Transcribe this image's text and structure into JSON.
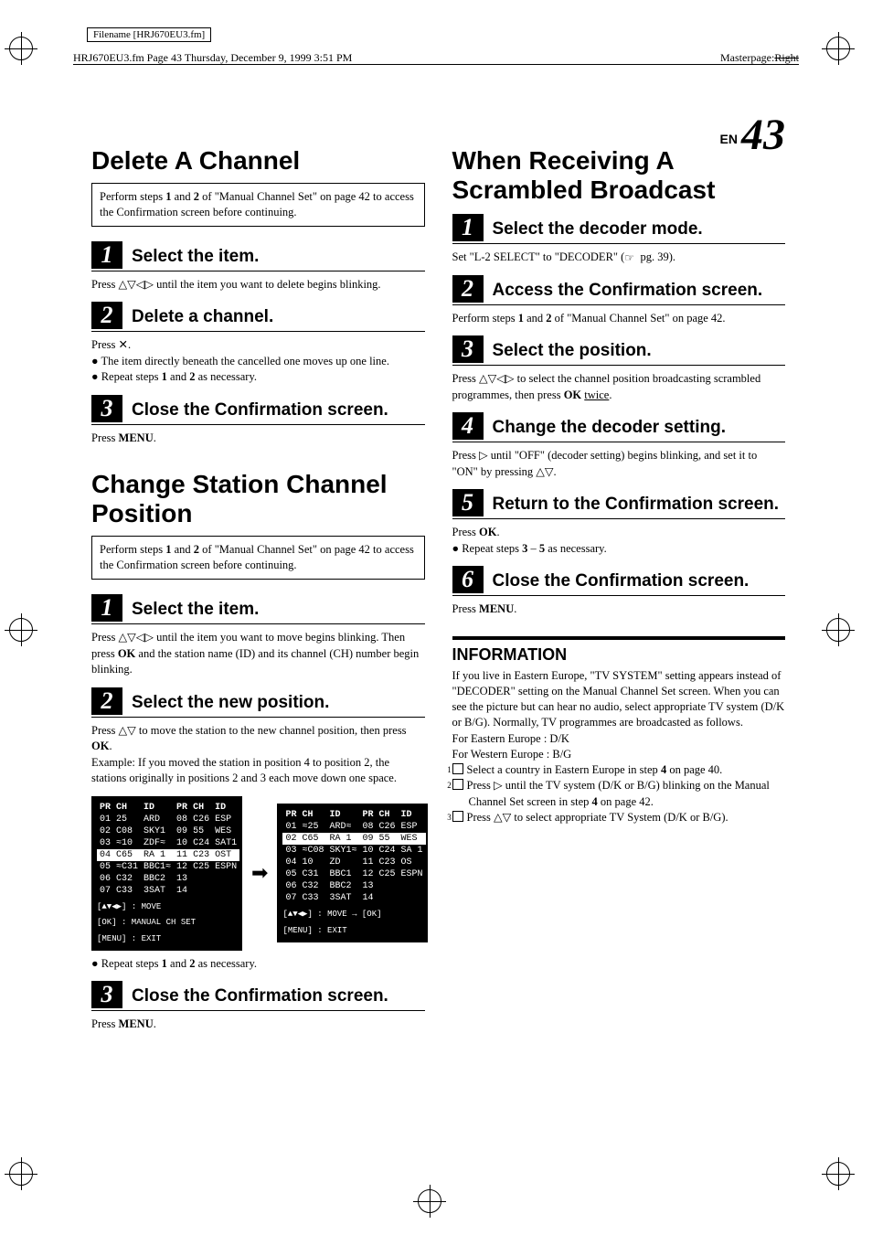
{
  "meta": {
    "filename_label": "Filename [HRJ670EU3.fm]",
    "header_left": "HRJ670EU3.fm  Page 43  Thursday, December 9, 1999  3:51 PM",
    "header_right_prefix": "Masterpage:",
    "header_right_value": "Right",
    "page_en": "EN",
    "page_number": "43"
  },
  "left": {
    "delete": {
      "title": "Delete A Channel",
      "note": "Perform steps 1 and 2 of \"Manual Channel Set\" on page 42 to access the Confirmation screen before continuing.",
      "step1": {
        "num": "1",
        "title": "Select the item.",
        "body": "Press △▽◁▷ until the item you want to delete begins blinking."
      },
      "step2": {
        "num": "2",
        "title": "Delete a channel.",
        "body_intro": "Press ✕.",
        "bul1": "The item directly beneath the cancelled one moves up one line.",
        "bul2": "Repeat steps 1 and 2 as necessary."
      },
      "step3": {
        "num": "3",
        "title": "Close the Confirmation screen.",
        "body": "Press MENU."
      }
    },
    "change": {
      "title": "Change Station Channel Position",
      "note": "Perform steps 1 and 2 of \"Manual Channel Set\" on page 42 to access the Confirmation screen before continuing.",
      "step1": {
        "num": "1",
        "title": "Select the item.",
        "body": "Press △▽◁▷ until the item you want to move begins blinking. Then press OK and the station name (ID) and its channel (CH) number begin blinking."
      },
      "step2": {
        "num": "2",
        "title": "Select the new position.",
        "body1": "Press △▽ to move the station to the new channel position, then press OK.",
        "body2": "Example: If you moved the station in position 4 to position 2, the stations originally in positions 2 and 3 each move down one space.",
        "bul1": "Repeat steps 1 and 2 as necessary."
      },
      "step3": {
        "num": "3",
        "title": "Close the Confirmation screen.",
        "body": "Press MENU."
      }
    },
    "osd_left": {
      "header": [
        "PR",
        "CH",
        "ID",
        "PR",
        "CH",
        "ID"
      ],
      "rows": [
        [
          "01",
          "25",
          "ARD",
          "08",
          "C26",
          "ESP"
        ],
        [
          "02",
          "C08",
          "SKY1",
          "09",
          "55",
          "WES"
        ],
        [
          "03",
          "≈10",
          "ZDF≈",
          "10",
          "C24",
          "SAT1"
        ],
        [
          "04",
          "C65",
          "RA 1",
          "11",
          "C23",
          "OST"
        ],
        [
          "05",
          "≈C31",
          "BBC1≈",
          "12",
          "C25",
          "ESPN"
        ],
        [
          "06",
          "C32",
          "BBC2",
          "13",
          "",
          ""
        ],
        [
          "07",
          "C33",
          "3SAT",
          "14",
          "",
          ""
        ]
      ],
      "highlight_row": 3,
      "footer1": "[▲▼◀▶] : MOVE",
      "footer2": "[OK] : MANUAL CH SET",
      "footer3": "[MENU] : EXIT"
    },
    "osd_right": {
      "header": [
        "PR",
        "CH",
        "ID",
        "PR",
        "CH",
        "ID"
      ],
      "rows": [
        [
          "01",
          "≈25",
          "ARD≈",
          "08",
          "C26",
          "ESP"
        ],
        [
          "02",
          "C65",
          "RA 1",
          "09",
          "55",
          "WES"
        ],
        [
          "03",
          "≈C08",
          "SKY1≈",
          "10",
          "C24",
          "SA 1"
        ],
        [
          "04",
          "10",
          "ZD",
          "11",
          "C23",
          "OS"
        ],
        [
          "05",
          "C31",
          "BBC1",
          "12",
          "C25",
          "ESPN"
        ],
        [
          "06",
          "C32",
          "BBC2",
          "13",
          "",
          ""
        ],
        [
          "07",
          "C33",
          "3SAT",
          "14",
          "",
          ""
        ]
      ],
      "highlight_row": 1,
      "footer1": "[▲▼◀▶] : MOVE → [OK]",
      "footer2": "[MENU] : EXIT"
    }
  },
  "right": {
    "scramble": {
      "title": "When Receiving A Scrambled Broadcast",
      "step1": {
        "num": "1",
        "title": "Select the decoder mode.",
        "body": "Set \"L-2 SELECT\" to \"DECODER\" (☞ pg. 39)."
      },
      "step2": {
        "num": "2",
        "title": "Access the Confirmation screen.",
        "body": "Perform steps 1 and 2 of \"Manual Channel Set\" on page 42."
      },
      "step3": {
        "num": "3",
        "title": "Select the position.",
        "body": "Press △▽◁▷ to select the channel position broadcasting scrambled programmes, then press OK twice."
      },
      "step4": {
        "num": "4",
        "title": "Change the decoder setting.",
        "body": "Press ▷ until \"OFF\" (decoder setting) begins blinking, and set it to \"ON\" by pressing △▽."
      },
      "step5": {
        "num": "5",
        "title": "Return to the Confirmation screen.",
        "body_intro": "Press OK.",
        "bul1": "Repeat steps 3 – 5 as necessary."
      },
      "step6": {
        "num": "6",
        "title": "Close the Confirmation screen.",
        "body": "Press MENU."
      }
    },
    "info": {
      "title": "INFORMATION",
      "body1": "If you live in Eastern Europe, \"TV SYSTEM\" setting appears instead of \"DECODER\" setting on the Manual Channel Set screen. When you can see the picture but can hear no audio, select appropriate TV system (D/K or B/G). Normally, TV programmes are broadcasted as follows.",
      "line_east": "For Eastern Europe : D/K",
      "line_west": "For Western Europe : B/G",
      "n1": "Select a country in Eastern Europe in step 4 on page 40.",
      "n2": "Press ▷ until the TV system (D/K or B/G) blinking on the Manual Channel Set screen in step 4 on page 42.",
      "n3": "Press △▽ to select appropriate TV System (D/K or B/G)."
    }
  }
}
